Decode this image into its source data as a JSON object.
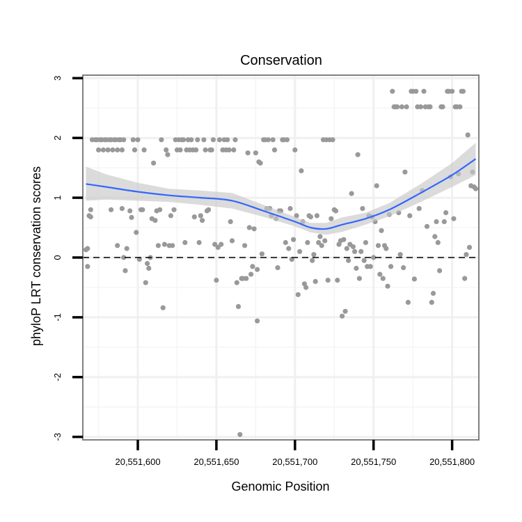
{
  "chart_data": {
    "type": "scatter",
    "title": "Conservation",
    "xlabel": "Genomic Position",
    "ylabel": "phyloP LRT conservation scores",
    "xlim": [
      20551565,
      20551817
    ],
    "ylim": [
      -3.05,
      3.05
    ],
    "xticks": [
      20551600,
      20551650,
      20551700,
      20551750,
      20551800
    ],
    "xtick_labels": [
      "20,551,600",
      "20,551,650",
      "20,551,700",
      "20,551,750",
      "20,551,800"
    ],
    "yticks": [
      -3,
      -2,
      -1,
      0,
      1,
      2,
      3
    ],
    "ytick_labels": [
      "-3",
      "-2",
      "-1",
      "0",
      "1",
      "2",
      "3"
    ],
    "grid": true,
    "reference_line": {
      "y": 0,
      "style": "dashed"
    },
    "colors": {
      "points": "#999999",
      "smooth": "#3366ff",
      "band": "#c8c8c8",
      "panel_border": "#808080",
      "grid": "#f0f0f0"
    },
    "points": [
      [
        20551567,
        0.13
      ],
      [
        20551568,
        -0.15
      ],
      [
        20551568,
        0.15
      ],
      [
        20551569,
        0.7
      ],
      [
        20551570,
        0.68
      ],
      [
        20551570,
        0.8
      ],
      [
        20551571,
        1.97
      ],
      [
        20551573,
        1.97
      ],
      [
        20551574,
        1.97
      ],
      [
        20551575,
        1.8
      ],
      [
        20551576,
        1.97
      ],
      [
        20551577,
        1.97
      ],
      [
        20551578,
        1.8
      ],
      [
        20551579,
        1.97
      ],
      [
        20551580,
        1.97
      ],
      [
        20551581,
        1.8
      ],
      [
        20551582,
        1.97
      ],
      [
        20551583,
        1.97
      ],
      [
        20551584,
        1.8
      ],
      [
        20551585,
        1.97
      ],
      [
        20551586,
        1.97
      ],
      [
        20551587,
        1.8
      ],
      [
        20551588,
        1.97
      ],
      [
        20551589,
        1.97
      ],
      [
        20551590,
        1.8
      ],
      [
        20551591,
        1.97
      ],
      [
        20551583,
        0.8
      ],
      [
        20551587,
        0.2
      ],
      [
        20551590,
        0.82
      ],
      [
        20551591,
        0.0
      ],
      [
        20551592,
        -0.22
      ],
      [
        20551593,
        0.15
      ],
      [
        20551595,
        0.78
      ],
      [
        20551596,
        0.67
      ],
      [
        20551597,
        1.97
      ],
      [
        20551598,
        1.8
      ],
      [
        20551599,
        0.42
      ],
      [
        20551600,
        1.97
      ],
      [
        20551601,
        -0.03
      ],
      [
        20551602,
        0.8
      ],
      [
        20551603,
        0.8
      ],
      [
        20551604,
        1.8
      ],
      [
        20551605,
        -0.42
      ],
      [
        20551606,
        -0.1
      ],
      [
        20551607,
        -0.18
      ],
      [
        20551608,
        0.0
      ],
      [
        20551609,
        0.65
      ],
      [
        20551610,
        1.58
      ],
      [
        20551611,
        0.62
      ],
      [
        20551612,
        0.78
      ],
      [
        20551613,
        0.2
      ],
      [
        20551614,
        0.8
      ],
      [
        20551615,
        1.97
      ],
      [
        20551616,
        -0.84
      ],
      [
        20551617,
        0.22
      ],
      [
        20551618,
        1.8
      ],
      [
        20551619,
        1.72
      ],
      [
        20551620,
        0.2
      ],
      [
        20551621,
        0.7
      ],
      [
        20551622,
        0.2
      ],
      [
        20551623,
        0.8
      ],
      [
        20551624,
        1.97
      ],
      [
        20551625,
        1.8
      ],
      [
        20551626,
        1.97
      ],
      [
        20551627,
        1.8
      ],
      [
        20551628,
        1.97
      ],
      [
        20551629,
        1.97
      ],
      [
        20551630,
        0.25
      ],
      [
        20551631,
        1.8
      ],
      [
        20551632,
        1.97
      ],
      [
        20551633,
        1.8
      ],
      [
        20551634,
        1.97
      ],
      [
        20551635,
        1.8
      ],
      [
        20551636,
        0.68
      ],
      [
        20551637,
        1.8
      ],
      [
        20551638,
        1.97
      ],
      [
        20551639,
        0.25
      ],
      [
        20551640,
        0.7
      ],
      [
        20551641,
        0.62
      ],
      [
        20551642,
        1.97
      ],
      [
        20551643,
        1.8
      ],
      [
        20551644,
        0.78
      ],
      [
        20551645,
        0.8
      ],
      [
        20551646,
        1.8
      ],
      [
        20551647,
        1.8
      ],
      [
        20551648,
        1.97
      ],
      [
        20551649,
        0.22
      ],
      [
        20551650,
        -0.38
      ],
      [
        20551651,
        0.17
      ],
      [
        20551652,
        1.97
      ],
      [
        20551653,
        0.22
      ],
      [
        20551654,
        1.8
      ],
      [
        20551655,
        1.97
      ],
      [
        20551656,
        1.8
      ],
      [
        20551657,
        1.97
      ],
      [
        20551658,
        1.8
      ],
      [
        20551659,
        0.6
      ],
      [
        20551660,
        0.28
      ],
      [
        20551661,
        1.8
      ],
      [
        20551662,
        1.97
      ],
      [
        20551663,
        -0.42
      ],
      [
        20551664,
        -0.82
      ],
      [
        20551665,
        -2.96
      ],
      [
        20551666,
        -0.35
      ],
      [
        20551667,
        -0.35
      ],
      [
        20551668,
        0.2
      ],
      [
        20551669,
        -0.35
      ],
      [
        20551670,
        1.75
      ],
      [
        20551671,
        0.5
      ],
      [
        20551672,
        -0.28
      ],
      [
        20551673,
        -0.15
      ],
      [
        20551674,
        0.48
      ],
      [
        20551675,
        1.75
      ],
      [
        20551676,
        -0.2
      ],
      [
        20551676,
        -1.06
      ],
      [
        20551677,
        1.6
      ],
      [
        20551678,
        1.58
      ],
      [
        20551679,
        0.06
      ],
      [
        20551680,
        1.97
      ],
      [
        20551681,
        1.97
      ],
      [
        20551682,
        0.82
      ],
      [
        20551683,
        1.97
      ],
      [
        20551684,
        0.82
      ],
      [
        20551685,
        0.7
      ],
      [
        20551686,
        1.97
      ],
      [
        20551687,
        1.8
      ],
      [
        20551688,
        0.65
      ],
      [
        20551689,
        -0.17
      ],
      [
        20551690,
        0.78
      ],
      [
        20551691,
        0.78
      ],
      [
        20551692,
        1.97
      ],
      [
        20551693,
        1.97
      ],
      [
        20551694,
        0.25
      ],
      [
        20551695,
        1.97
      ],
      [
        20551696,
        0.15
      ],
      [
        20551697,
        0.82
      ],
      [
        20551698,
        -0.03
      ],
      [
        20551699,
        0.3
      ],
      [
        20551700,
        1.8
      ],
      [
        20551701,
        0.7
      ],
      [
        20551702,
        -0.62
      ],
      [
        20551703,
        0.1
      ],
      [
        20551704,
        1.45
      ],
      [
        20551705,
        0.6
      ],
      [
        20551706,
        -0.44
      ],
      [
        20551707,
        -0.5
      ],
      [
        20551708,
        0.25
      ],
      [
        20551709,
        0.7
      ],
      [
        20551710,
        0.68
      ],
      [
        20551711,
        -0.05
      ],
      [
        20551712,
        0.05
      ],
      [
        20551713,
        -0.4
      ],
      [
        20551714,
        0.7
      ],
      [
        20551715,
        0.25
      ],
      [
        20551716,
        0.35
      ],
      [
        20551717,
        0.2
      ],
      [
        20551718,
        1.97
      ],
      [
        20551719,
        0.28
      ],
      [
        20551720,
        1.97
      ],
      [
        20551721,
        -0.38
      ],
      [
        20551722,
        1.97
      ],
      [
        20551723,
        0.65
      ],
      [
        20551724,
        1.97
      ],
      [
        20551725,
        0.8
      ],
      [
        20551726,
        0.78
      ],
      [
        20551727,
        -0.38
      ],
      [
        20551728,
        0.22
      ],
      [
        20551729,
        0.28
      ],
      [
        20551730,
        -0.98
      ],
      [
        20551731,
        0.3
      ],
      [
        20551732,
        -0.9
      ],
      [
        20551733,
        0.15
      ],
      [
        20551734,
        -0.05
      ],
      [
        20551735,
        0.22
      ],
      [
        20551736,
        1.07
      ],
      [
        20551737,
        0.18
      ],
      [
        20551738,
        0.1
      ],
      [
        20551739,
        -0.18
      ],
      [
        20551740,
        1.72
      ],
      [
        20551741,
        -0.35
      ],
      [
        20551742,
        0.1
      ],
      [
        20551743,
        0.82
      ],
      [
        20551744,
        -0.05
      ],
      [
        20551745,
        0.25
      ],
      [
        20551746,
        -0.15
      ],
      [
        20551747,
        0.7
      ],
      [
        20551748,
        -0.15
      ],
      [
        20551749,
        0.68
      ],
      [
        20551750,
        0.0
      ],
      [
        20551751,
        0.6
      ],
      [
        20551752,
        1.2
      ],
      [
        20551753,
        0.2
      ],
      [
        20551754,
        -0.28
      ],
      [
        20551755,
        0.45
      ],
      [
        20551756,
        -0.35
      ],
      [
        20551757,
        0.2
      ],
      [
        20551758,
        0.15
      ],
      [
        20551759,
        -0.48
      ],
      [
        20551760,
        0.72
      ],
      [
        20551761,
        -0.15
      ],
      [
        20551762,
        2.78
      ],
      [
        20551763,
        2.52
      ],
      [
        20551764,
        2.52
      ],
      [
        20551765,
        2.52
      ],
      [
        20551766,
        0.75
      ],
      [
        20551767,
        0.05
      ],
      [
        20551768,
        2.52
      ],
      [
        20551769,
        -0.17
      ],
      [
        20551770,
        1.43
      ],
      [
        20551771,
        2.52
      ],
      [
        20551772,
        -0.75
      ],
      [
        20551773,
        0.7
      ],
      [
        20551774,
        2.78
      ],
      [
        20551775,
        2.78
      ],
      [
        20551776,
        -0.36
      ],
      [
        20551777,
        2.78
      ],
      [
        20551778,
        2.52
      ],
      [
        20551779,
        0.82
      ],
      [
        20551780,
        2.52
      ],
      [
        20551781,
        1.12
      ],
      [
        20551782,
        2.78
      ],
      [
        20551783,
        2.52
      ],
      [
        20551784,
        0.52
      ],
      [
        20551785,
        2.52
      ],
      [
        20551786,
        2.52
      ],
      [
        20551787,
        -0.75
      ],
      [
        20551788,
        -0.6
      ],
      [
        20551789,
        0.35
      ],
      [
        20551790,
        0.6
      ],
      [
        20551791,
        0.25
      ],
      [
        20551792,
        -0.22
      ],
      [
        20551793,
        2.52
      ],
      [
        20551794,
        2.52
      ],
      [
        20551795,
        0.6
      ],
      [
        20551796,
        0.75
      ],
      [
        20551797,
        2.78
      ],
      [
        20551798,
        2.78
      ],
      [
        20551799,
        1.35
      ],
      [
        20551800,
        2.78
      ],
      [
        20551801,
        0.65
      ],
      [
        20551802,
        2.52
      ],
      [
        20551803,
        2.52
      ],
      [
        20551804,
        1.4
      ],
      [
        20551805,
        2.52
      ],
      [
        20551806,
        2.78
      ],
      [
        20551807,
        2.78
      ],
      [
        20551808,
        -0.35
      ],
      [
        20551809,
        0.05
      ],
      [
        20551810,
        2.05
      ],
      [
        20551811,
        0.17
      ],
      [
        20551812,
        1.2
      ],
      [
        20551813,
        1.43
      ],
      [
        20551814,
        1.18
      ],
      [
        20551815,
        1.15
      ]
    ],
    "smooth": {
      "method": "loess",
      "x": [
        20551567,
        20551580,
        20551600,
        20551620,
        20551640,
        20551660,
        20551680,
        20551700,
        20551710,
        20551720,
        20551730,
        20551745,
        20551760,
        20551780,
        20551800,
        20551815
      ],
      "y": [
        1.23,
        1.18,
        1.1,
        1.04,
        1.0,
        0.95,
        0.78,
        0.6,
        0.5,
        0.48,
        0.55,
        0.65,
        0.8,
        1.08,
        1.38,
        1.65
      ],
      "lower": [
        0.95,
        0.97,
        0.95,
        0.93,
        0.88,
        0.82,
        0.68,
        0.52,
        0.42,
        0.38,
        0.43,
        0.55,
        0.69,
        0.93,
        1.18,
        1.38
      ],
      "upper": [
        1.52,
        1.39,
        1.25,
        1.15,
        1.12,
        1.08,
        0.88,
        0.68,
        0.58,
        0.58,
        0.67,
        0.75,
        0.91,
        1.23,
        1.58,
        1.92
      ]
    }
  }
}
